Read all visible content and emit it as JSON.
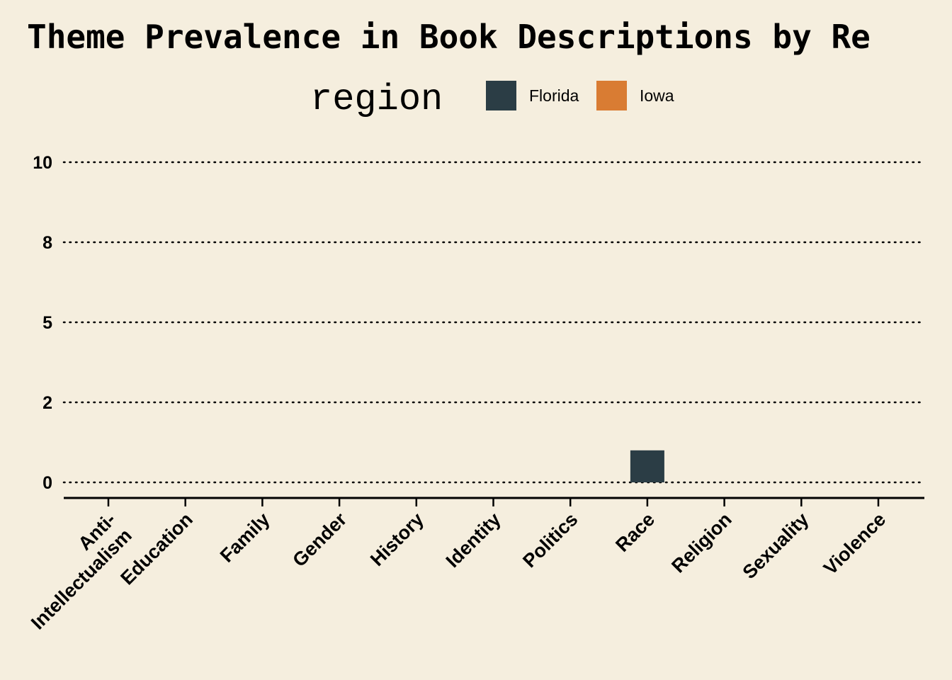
{
  "chart_data": {
    "type": "bar",
    "title": "Theme Prevalence in Book Descriptions by Re",
    "legend": {
      "title": "region",
      "placement": "top"
    },
    "categories": [
      "Anti-\nIntellectualism",
      "Education",
      "Family",
      "Gender",
      "History",
      "Identity",
      "Politics",
      "Race",
      "Religion",
      "Sexuality",
      "Violence"
    ],
    "series": [
      {
        "name": "Florida",
        "color": "#2B3D45",
        "values": [
          0,
          0,
          0,
          0,
          0,
          0,
          0,
          1,
          0,
          0,
          0
        ]
      },
      {
        "name": "Iowa",
        "color": "#D97C33",
        "values": [
          0,
          0,
          0,
          0,
          0,
          0,
          0,
          0,
          0,
          0,
          0
        ]
      }
    ],
    "yticks": [
      0,
      2,
      5,
      8,
      10
    ],
    "ytick_positions": [
      0,
      2.5,
      5,
      7.5,
      10
    ],
    "ylim": [
      -0.5,
      10
    ],
    "xlabel": "",
    "ylabel": "",
    "grid": "horizontal dotted"
  }
}
